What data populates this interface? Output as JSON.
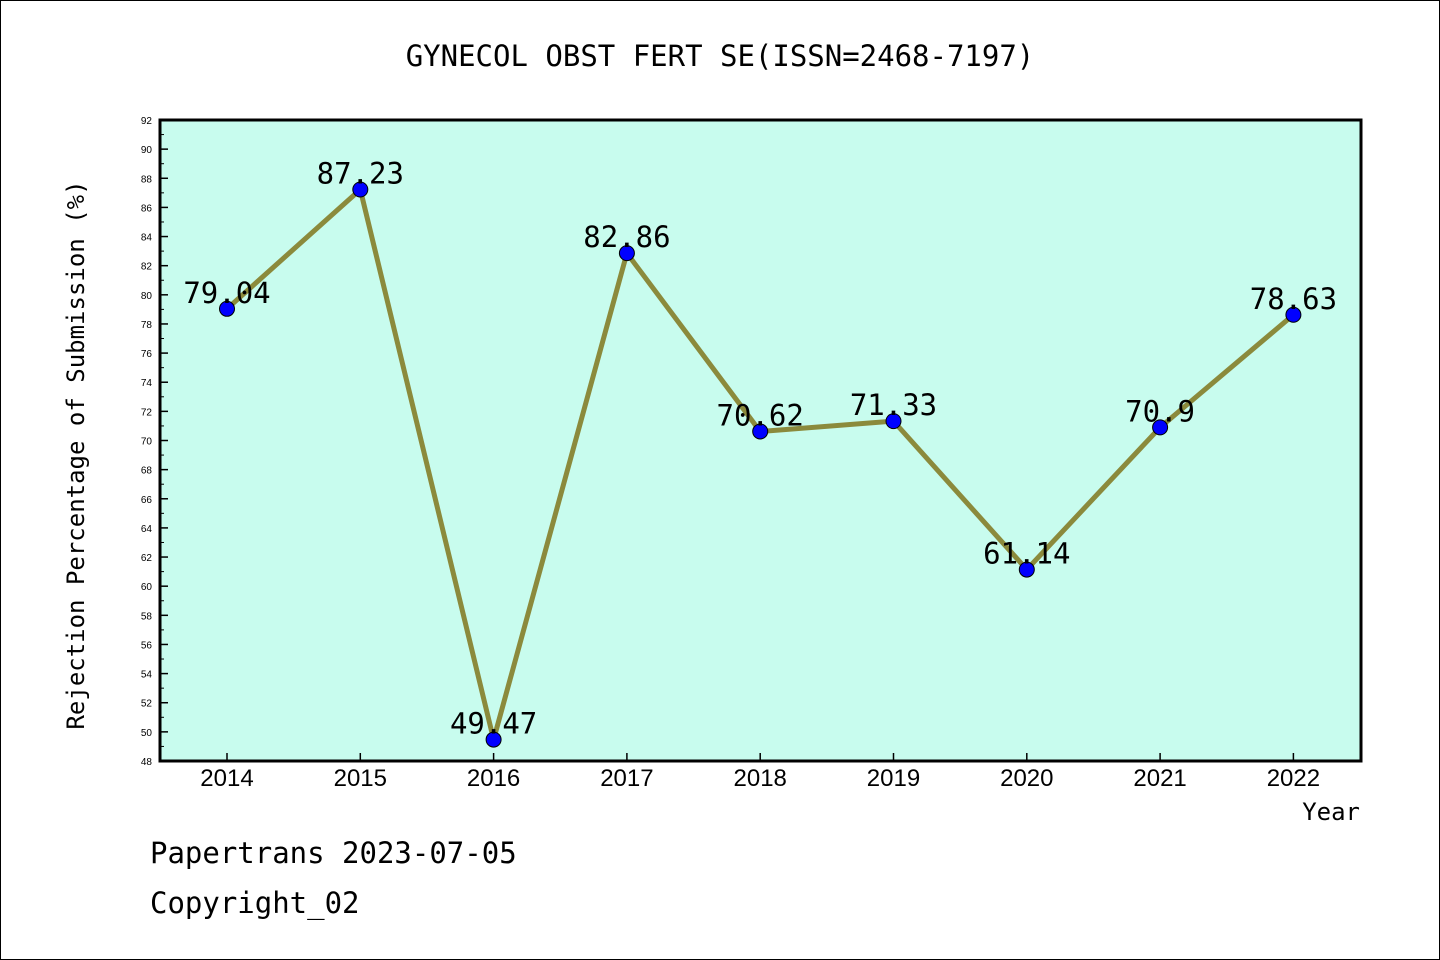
{
  "footer": {
    "date_text": "Papertrans 2023-07-05",
    "copyright_text": "Copyright_02"
  },
  "chart_data": {
    "type": "line",
    "title": "GYNECOL OBST FERT SE(ISSN=2468-7197)",
    "xlabel": "Year",
    "ylabel": "Rejection Percentage of Submission (%)",
    "categories": [
      "2014",
      "2015",
      "2016",
      "2017",
      "2018",
      "2019",
      "2020",
      "2021",
      "2022"
    ],
    "series": [
      {
        "values": [
          79.04,
          87.23,
          49.47,
          82.86,
          70.62,
          71.33,
          61.14,
          70.9,
          78.63
        ],
        "labels": [
          "79.04",
          "87.23",
          "49.47",
          "82.86",
          "70.62",
          "71.33",
          "61.14",
          "70.9",
          "78.63"
        ]
      }
    ],
    "ylim": [
      48,
      92
    ],
    "yticks": [
      48,
      50,
      52,
      54,
      56,
      58,
      60,
      62,
      64,
      66,
      68,
      70,
      72,
      74,
      76,
      78,
      80,
      82,
      84,
      86,
      88,
      90,
      92
    ],
    "grid": false,
    "legend": "none",
    "colors": {
      "plot_background": "#c8fcee",
      "line": "#8b8a3c",
      "marker": "#0000ff"
    }
  }
}
